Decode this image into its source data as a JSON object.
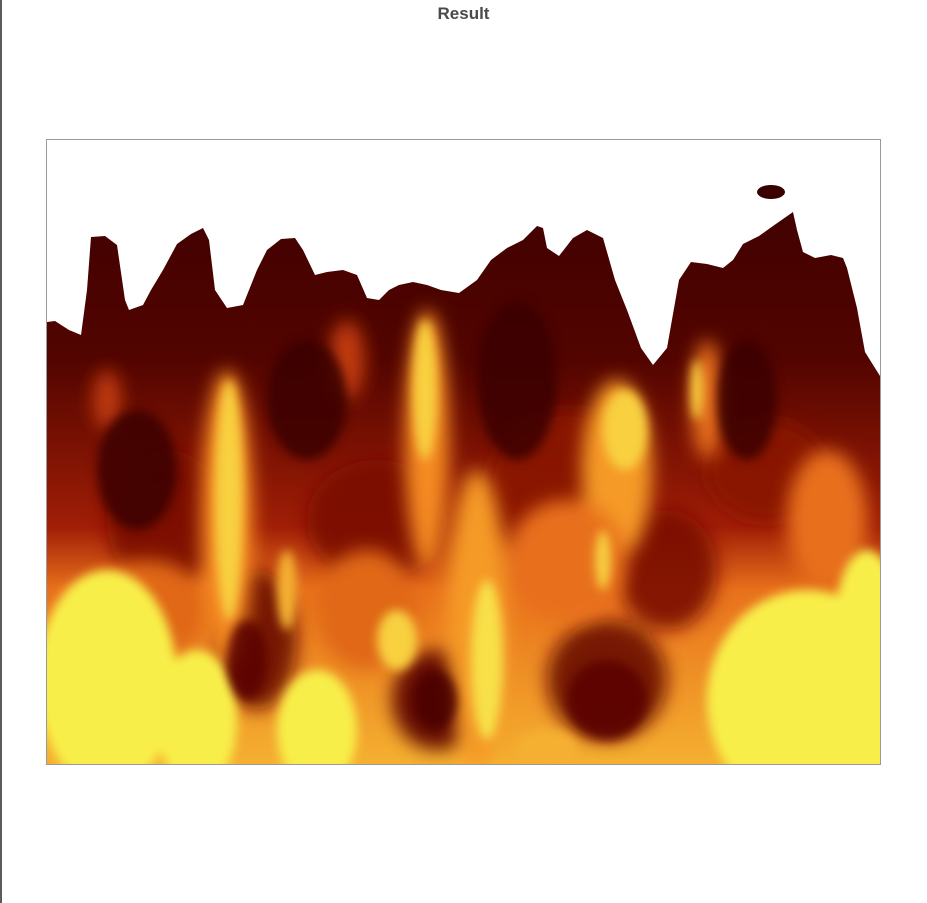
{
  "title": "Result",
  "image": {
    "description_icon": "heatmap-image",
    "colormap": [
      "#3a0000",
      "#7a0a00",
      "#c03a0c",
      "#e8701c",
      "#f5b030",
      "#f8ee4a"
    ],
    "background": "#ffffff"
  }
}
